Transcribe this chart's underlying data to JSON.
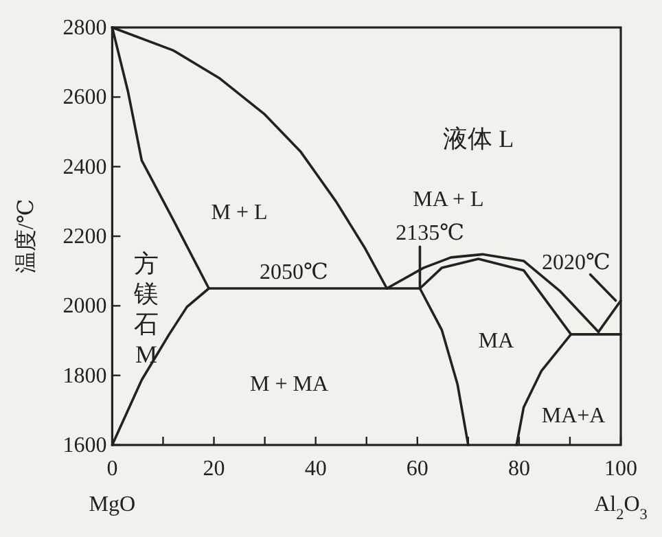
{
  "chart_data": {
    "type": "line",
    "ylabel": "温度/℃",
    "xlim": [
      0,
      100
    ],
    "ylim": [
      1600,
      2800
    ],
    "xticks": [
      0,
      {
        "value": 10,
        "label": null
      },
      20,
      {
        "value": 30,
        "label": null
      },
      40,
      {
        "value": 50,
        "label": null
      },
      60,
      {
        "value": 70,
        "label": null
      },
      80,
      {
        "value": 90,
        "label": null
      },
      100
    ],
    "yticks": [
      1600,
      1800,
      2000,
      2200,
      2400,
      2600,
      2800
    ],
    "series": [
      {
        "color": "#222222",
        "x": [
          0,
          12,
          21,
          30,
          37,
          44,
          49.6,
          54
        ],
        "values": [
          2800,
          2734,
          2655,
          2550,
          2444,
          2300,
          2168,
          2050
        ]
      },
      {
        "color": "#222222",
        "x": [
          0,
          3.1,
          5.8,
          12,
          19
        ],
        "values": [
          2800,
          2616,
          2418,
          2247,
          2050
        ]
      },
      {
        "color": "#222222",
        "x": [
          0,
          5.8,
          11.2,
          14.7,
          19
        ],
        "values": [
          1600,
          1787,
          1918,
          1997,
          2050
        ]
      },
      {
        "color": "#222222",
        "x": [
          19,
          60.5
        ],
        "values": [
          2050,
          2050
        ]
      },
      {
        "color": "#222222",
        "x": [
          54,
          61.2,
          66.6,
          72.8,
          80.9,
          88,
          95.6
        ],
        "values": [
          2050,
          2109,
          2139,
          2148,
          2129,
          2043,
          1925
        ]
      },
      {
        "color": "#222222",
        "x": [
          60.5,
          64.8,
          72,
          80.9,
          90.2
        ],
        "values": [
          2050,
          2109,
          2135,
          2102,
          1918
        ]
      },
      {
        "color": "#222222",
        "x": [
          60.5,
          64.8,
          67.9,
          70
        ],
        "values": [
          2050,
          1931,
          1774,
          1600
        ]
      },
      {
        "color": "#222222",
        "x": [
          90.2,
          84.4,
          80.9,
          79.5
        ],
        "values": [
          1918,
          1813,
          1708,
          1600
        ]
      },
      {
        "color": "#222222",
        "x": [
          90.2,
          100
        ],
        "values": [
          1918,
          1918
        ]
      },
      {
        "color": "#222222",
        "x": [
          95.6,
          100
        ],
        "values": [
          1925,
          2015
        ]
      },
      {
        "color": "#222222",
        "x": [
          60.5,
          60.5
        ],
        "values": [
          2050,
          2170
        ]
      },
      {
        "color": "#222222",
        "x": [
          94,
          99
        ],
        "values": [
          2090,
          2015
        ]
      }
    ],
    "annotations": [
      "液体 L",
      "M + L",
      "方镁石M",
      "2050℃",
      "M + MA",
      "MA + L",
      "2135℃",
      "2020℃",
      "MA",
      "MA+A",
      "MgO",
      "Al$_{2}$O$_{3}$"
    ]
  }
}
